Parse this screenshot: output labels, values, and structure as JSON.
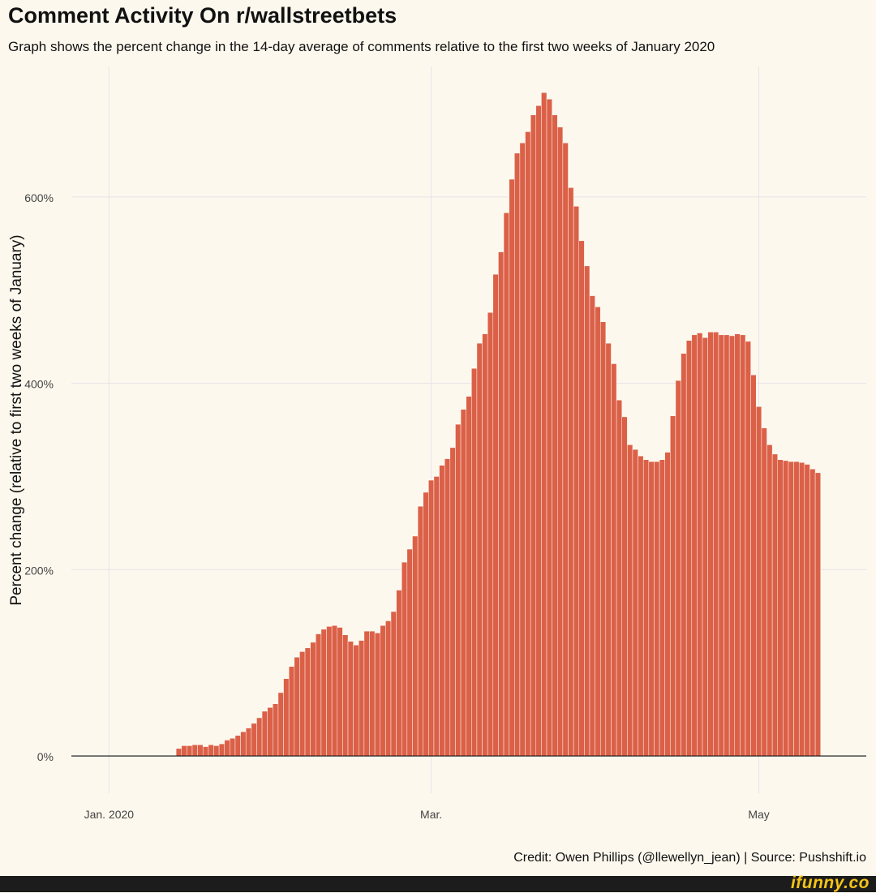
{
  "header": {
    "title": "Comment Activity On r/wallstreetbets",
    "subtitle": "Graph shows the percent change in the 14-day average of comments relative to the first two weeks of January 2020"
  },
  "footer": {
    "credit": "Credit: Owen Phillips (@llewellyn_jean) | Source: Pushshift.io",
    "watermark": "ifunny.co"
  },
  "colors": {
    "background": "#fdf8ee",
    "bar": "#db6048",
    "grid": "#e6e3e8",
    "watermark": "#f5c417"
  },
  "chart_data": {
    "type": "bar",
    "title": "Comment Activity On r/wallstreetbets",
    "xlabel": "",
    "ylabel": "Percent change (relative to first two weeks of January)",
    "ylim": [
      -40,
      740
    ],
    "y_ticks": [
      {
        "value": 0,
        "label": "0%"
      },
      {
        "value": 200,
        "label": "200%"
      },
      {
        "value": 400,
        "label": "400%"
      },
      {
        "value": 600,
        "label": "600%"
      }
    ],
    "x_ticks": [
      {
        "day_index": 0,
        "label": "Jan. 2020"
      },
      {
        "day_index": 60,
        "label": "Mar."
      },
      {
        "day_index": 121,
        "label": "May"
      }
    ],
    "x_range_days": [
      -7,
      141
    ],
    "first_bar_day_index": 13,
    "grid": true,
    "legend": "none",
    "values": [
      8,
      11,
      11,
      12,
      12,
      10,
      12,
      11,
      13,
      17,
      19,
      22,
      26,
      30,
      35,
      41,
      48,
      52,
      56,
      68,
      83,
      96,
      106,
      112,
      116,
      122,
      131,
      136,
      139,
      140,
      138,
      130,
      123,
      119,
      124,
      134,
      134,
      132,
      140,
      145,
      155,
      178,
      208,
      222,
      236,
      268,
      283,
      296,
      300,
      312,
      319,
      331,
      356,
      372,
      386,
      416,
      443,
      453,
      476,
      517,
      541,
      583,
      619,
      647,
      658,
      670,
      688,
      698,
      712,
      705,
      688,
      675,
      658,
      610,
      590,
      553,
      526,
      494,
      482,
      466,
      443,
      421,
      382,
      364,
      334,
      329,
      322,
      318,
      316,
      316,
      318,
      326,
      365,
      403,
      432,
      446,
      452,
      454,
      449,
      455,
      455,
      452,
      452,
      451,
      453,
      452,
      445,
      409,
      375,
      352,
      334,
      324,
      318,
      317,
      316,
      316,
      315,
      313,
      308,
      304
    ]
  }
}
